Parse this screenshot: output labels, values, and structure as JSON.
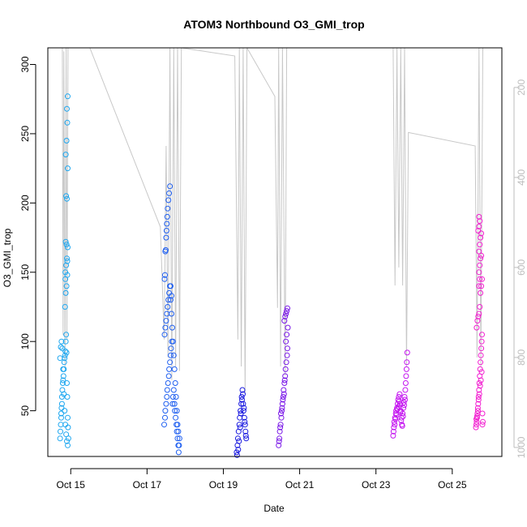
{
  "chart_data": {
    "type": "scatter",
    "title": "ATOM3 Northbound O3_GMI_trop",
    "xlabel": "Date",
    "ylabel": "O3_GMI_trop",
    "x_ticks": [
      "Oct 15",
      "Oct 17",
      "Oct 19",
      "Oct 21",
      "Oct 23",
      "Oct 25"
    ],
    "x_tick_values": [
      15,
      17,
      19,
      21,
      23,
      25
    ],
    "xlim": [
      14.4,
      26.3
    ],
    "ylim": [
      17,
      312
    ],
    "y_ticks": [
      50,
      100,
      150,
      200,
      250,
      300
    ],
    "right_axis": {
      "description": "secondary altitude axis (pressure-like), reversed",
      "ticks": [
        200,
        400,
        600,
        800,
        1000
      ],
      "range": [
        112,
        1020
      ],
      "color": "#bdbdbd"
    },
    "gray_profile_line": [
      [
        14.78,
        100
      ],
      [
        14.8,
        750
      ],
      [
        14.82,
        120
      ],
      [
        14.85,
        820
      ],
      [
        14.88,
        112
      ],
      [
        14.9,
        760
      ],
      [
        14.93,
        112
      ],
      [
        15.5,
        112
      ],
      [
        17.35,
        510
      ],
      [
        17.45,
        760
      ],
      [
        17.5,
        330
      ],
      [
        17.55,
        800
      ],
      [
        17.6,
        112
      ],
      [
        17.65,
        850
      ],
      [
        17.7,
        112
      ],
      [
        17.75,
        820
      ],
      [
        17.8,
        112
      ],
      [
        17.85,
        830
      ],
      [
        17.9,
        112
      ],
      [
        19.3,
        130
      ],
      [
        19.38,
        760
      ],
      [
        19.42,
        112
      ],
      [
        19.47,
        820
      ],
      [
        19.52,
        112
      ],
      [
        19.57,
        880
      ],
      [
        19.62,
        112
      ],
      [
        20.35,
        220
      ],
      [
        20.42,
        690
      ],
      [
        20.45,
        112
      ],
      [
        20.5,
        820
      ],
      [
        20.55,
        112
      ],
      [
        20.62,
        840
      ],
      [
        20.66,
        112
      ],
      [
        23.45,
        112
      ],
      [
        23.5,
        640
      ],
      [
        23.55,
        112
      ],
      [
        23.6,
        600
      ],
      [
        23.65,
        112
      ],
      [
        23.7,
        640
      ],
      [
        23.75,
        112
      ],
      [
        23.8,
        820
      ],
      [
        23.85,
        300
      ],
      [
        25.6,
        330
      ],
      [
        25.65,
        800
      ],
      [
        25.7,
        112
      ],
      [
        25.75,
        820
      ],
      [
        25.8,
        112
      ]
    ],
    "series": [
      {
        "color": "#1ea7f0",
        "x": [
          14.72,
          14.73,
          14.74,
          14.75,
          14.75,
          14.76,
          14.77,
          14.77,
          14.78,
          14.79,
          14.8,
          14.81,
          14.82,
          14.83,
          14.84,
          14.85,
          14.86,
          14.87,
          14.88,
          14.89,
          14.9,
          14.91,
          14.92,
          14.93,
          14.94,
          14.72,
          14.74,
          14.76,
          14.78,
          14.8,
          14.82,
          14.84,
          14.86,
          14.88,
          14.9,
          14.92,
          14.85,
          14.87,
          14.89,
          14.91,
          14.86,
          14.88,
          14.9,
          14.92,
          14.87,
          14.89,
          14.91,
          14.86,
          14.88,
          14.9,
          14.92,
          14.87,
          14.89,
          14.91,
          14.9,
          14.92
        ],
        "y": [
          30,
          35,
          40,
          45,
          48,
          52,
          55,
          60,
          65,
          70,
          72,
          75,
          80,
          85,
          88,
          90,
          93,
          100,
          105,
          92,
          70,
          60,
          45,
          38,
          30,
          88,
          96,
          100,
          95,
          80,
          62,
          50,
          40,
          33,
          28,
          25,
          125,
          135,
          140,
          148,
          150,
          155,
          160,
          168,
          172,
          170,
          158,
          145,
          205,
          203,
          225,
          235,
          245,
          258,
          268,
          277
        ]
      },
      {
        "color": "#1f5ff0",
        "x": [
          17.45,
          17.47,
          17.48,
          17.5,
          17.52,
          17.53,
          17.55,
          17.57,
          17.58,
          17.6,
          17.62,
          17.63,
          17.65,
          17.67,
          17.68,
          17.7,
          17.72,
          17.73,
          17.75,
          17.77,
          17.78,
          17.8,
          17.82,
          17.83,
          17.85,
          17.46,
          17.48,
          17.5,
          17.52,
          17.54,
          17.56,
          17.58,
          17.6,
          17.62,
          17.64,
          17.66,
          17.68,
          17.7,
          17.72,
          17.74,
          17.76,
          17.78,
          17.8,
          17.82,
          17.84,
          17.46,
          17.47,
          17.48,
          17.49,
          17.5,
          17.51,
          17.52,
          17.53,
          17.54,
          17.56,
          17.58,
          17.6,
          17.62,
          17.64
        ],
        "y": [
          40,
          45,
          50,
          55,
          60,
          65,
          70,
          75,
          80,
          85,
          90,
          95,
          100,
          55,
          60,
          65,
          55,
          50,
          45,
          40,
          35,
          30,
          25,
          20,
          30,
          105,
          110,
          115,
          120,
          125,
          130,
          135,
          140,
          130,
          120,
          110,
          100,
          90,
          80,
          70,
          60,
          50,
          40,
          35,
          25,
          145,
          148,
          165,
          166,
          175,
          180,
          185,
          190,
          196,
          202,
          207,
          212,
          140,
          133
        ]
      },
      {
        "color": "#1a1ae0",
        "x": [
          19.35,
          19.37,
          19.38,
          19.4,
          19.42,
          19.43,
          19.45,
          19.47,
          19.48,
          19.5,
          19.52,
          19.53,
          19.55,
          19.57,
          19.58,
          19.6,
          19.36,
          19.39,
          19.41,
          19.44,
          19.46,
          19.49,
          19.51,
          19.54,
          19.56,
          19.59
        ],
        "y": [
          20,
          25,
          30,
          35,
          40,
          45,
          50,
          55,
          60,
          65,
          55,
          50,
          45,
          40,
          35,
          30,
          18,
          22,
          28,
          38,
          48,
          58,
          62,
          52,
          42,
          32
        ]
      },
      {
        "color": "#7a18e8",
        "x": [
          20.45,
          20.47,
          20.48,
          20.5,
          20.52,
          20.53,
          20.55,
          20.57,
          20.58,
          20.6,
          20.62,
          20.63,
          20.65,
          20.67,
          20.68,
          20.46,
          20.49,
          20.51,
          20.54,
          20.56,
          20.59,
          20.61,
          20.64,
          20.66,
          20.69,
          20.6,
          20.62,
          20.64,
          20.66,
          20.68
        ],
        "y": [
          25,
          30,
          35,
          40,
          45,
          50,
          55,
          60,
          65,
          70,
          75,
          80,
          85,
          90,
          95,
          28,
          38,
          48,
          52,
          58,
          62,
          72,
          100,
          105,
          110,
          115,
          118,
          120,
          122,
          124
        ]
      },
      {
        "color": "#c415f0",
        "x": [
          23.45,
          23.47,
          23.48,
          23.5,
          23.52,
          23.53,
          23.55,
          23.57,
          23.58,
          23.6,
          23.62,
          23.63,
          23.65,
          23.67,
          23.68,
          23.7,
          23.72,
          23.73,
          23.75,
          23.77,
          23.78,
          23.46,
          23.49,
          23.51,
          23.54,
          23.56,
          23.59,
          23.61,
          23.64,
          23.66,
          23.69,
          23.71,
          23.74,
          23.76,
          23.79,
          23.8,
          23.81,
          23.82
        ],
        "y": [
          32,
          38,
          42,
          45,
          48,
          50,
          52,
          55,
          58,
          60,
          62,
          55,
          50,
          45,
          40,
          48,
          52,
          56,
          60,
          65,
          70,
          35,
          40,
          44,
          47,
          51,
          53,
          57,
          49,
          43,
          39,
          46,
          54,
          58,
          75,
          80,
          85,
          92
        ]
      },
      {
        "color": "#f21fd0",
        "x": [
          25.62,
          25.63,
          25.64,
          25.65,
          25.66,
          25.67,
          25.68,
          25.69,
          25.7,
          25.71,
          25.72,
          25.73,
          25.74,
          25.75,
          25.76,
          25.77,
          25.78,
          25.79,
          25.8,
          25.63,
          25.65,
          25.67,
          25.69,
          25.71,
          25.73,
          25.75,
          25.77,
          25.79,
          25.64,
          25.66,
          25.68,
          25.7,
          25.72,
          25.74,
          25.76,
          25.78,
          25.7,
          25.72,
          25.74,
          25.76,
          25.7,
          25.72,
          25.74,
          25.76,
          25.68,
          25.7,
          25.72,
          25.7,
          25.72,
          25.7
        ],
        "y": [
          38,
          40,
          42,
          45,
          48,
          50,
          55,
          60,
          65,
          70,
          75,
          80,
          85,
          90,
          95,
          100,
          105,
          48,
          42,
          44,
          46,
          52,
          58,
          62,
          68,
          72,
          78,
          40,
          110,
          115,
          118,
          120,
          125,
          135,
          140,
          145,
          150,
          155,
          160,
          162,
          165,
          170,
          175,
          178,
          180,
          183,
          187,
          190,
          145,
          140
        ]
      }
    ]
  }
}
